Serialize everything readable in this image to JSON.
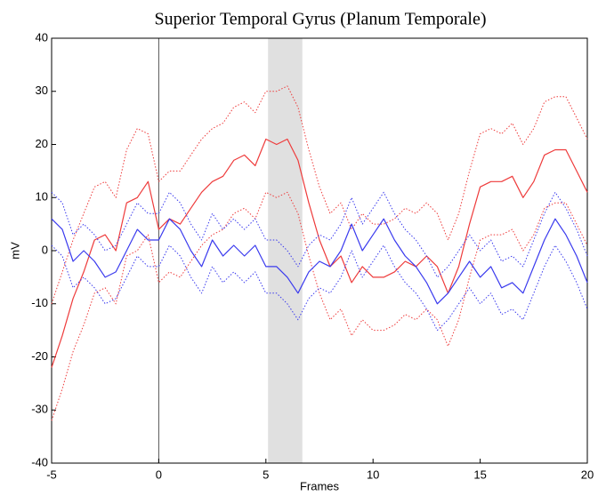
{
  "chart_data": {
    "type": "line",
    "title": "Superior Temporal Gyrus (Planum Temporale)",
    "x_label": "Frames",
    "y_label": "mV",
    "x": [
      -5,
      -4.5,
      -4,
      -3.5,
      -3,
      -2.5,
      -2,
      -1.5,
      -1,
      -0.5,
      0,
      0.5,
      1,
      1.5,
      2,
      2.5,
      3,
      3.5,
      4,
      4.5,
      5,
      5.5,
      6,
      6.5,
      7,
      7.5,
      8,
      8.5,
      9,
      9.5,
      10,
      10.5,
      11,
      11.5,
      12,
      12.5,
      13,
      13.5,
      14,
      14.5,
      15,
      15.5,
      16,
      16.5,
      17,
      17.5,
      18,
      18.5,
      19,
      19.5,
      20
    ],
    "series": [
      {
        "color": "#ee3b3b",
        "linestyle": "solid",
        "values": [
          -22,
          -16,
          -9,
          -4,
          2,
          3,
          0,
          9,
          10,
          13,
          4,
          6,
          5,
          8,
          11,
          13,
          14,
          17,
          18,
          16,
          21,
          20,
          21,
          17,
          9,
          2,
          -3,
          -1,
          -6,
          -3,
          -5,
          -5,
          -4,
          -2,
          -3,
          -1,
          -3,
          -8,
          -3,
          5,
          12,
          13,
          13,
          14,
          10,
          13,
          18,
          19,
          19,
          15,
          11
        ]
      },
      {
        "color": "#ee3b3b",
        "linestyle": "dotted",
        "values": [
          -10,
          -4,
          2,
          7,
          12,
          13,
          10,
          19,
          23,
          22,
          13,
          15,
          15,
          18,
          21,
          23,
          24,
          27,
          28,
          26,
          30,
          30,
          31,
          27,
          19,
          12,
          7,
          9,
          4,
          7,
          5,
          5,
          6,
          8,
          7,
          9,
          7,
          2,
          7,
          15,
          22,
          23,
          22,
          24,
          20,
          23,
          28,
          29,
          29,
          25,
          21
        ]
      },
      {
        "color": "#ee3b3b",
        "linestyle": "dotted",
        "values": [
          -32,
          -26,
          -19,
          -14,
          -8,
          -7,
          -10,
          -1,
          0,
          3,
          -6,
          -4,
          -5,
          -2,
          1,
          3,
          4,
          7,
          8,
          6,
          11,
          10,
          11,
          7,
          -1,
          -8,
          -13,
          -11,
          -16,
          -13,
          -15,
          -15,
          -14,
          -12,
          -13,
          -11,
          -13,
          -18,
          -13,
          -5,
          2,
          3,
          3,
          4,
          0,
          3,
          8,
          9,
          9,
          5,
          1
        ]
      },
      {
        "color": "#3a3aee",
        "linestyle": "solid",
        "values": [
          6,
          4,
          -2,
          0,
          -2,
          -5,
          -4,
          0,
          4,
          2,
          2,
          6,
          4,
          0,
          -3,
          2,
          -1,
          1,
          -1,
          1,
          -3,
          -3,
          -5,
          -8,
          -4,
          -2,
          -3,
          0,
          5,
          0,
          3,
          6,
          2,
          -1,
          -3,
          -6,
          -10,
          -8,
          -5,
          -2,
          -5,
          -3,
          -7,
          -6,
          -8,
          -3,
          2,
          6,
          3,
          -1,
          -6
        ]
      },
      {
        "color": "#3a3aee",
        "linestyle": "dotted",
        "values": [
          11,
          9,
          3,
          5,
          3,
          0,
          1,
          5,
          9,
          7,
          7,
          11,
          9,
          5,
          2,
          7,
          4,
          6,
          4,
          6,
          2,
          2,
          0,
          -3,
          1,
          3,
          2,
          5,
          10,
          5,
          8,
          11,
          7,
          4,
          2,
          -1,
          -5,
          -3,
          0,
          3,
          0,
          2,
          -2,
          -1,
          -3,
          2,
          7,
          11,
          8,
          4,
          -1
        ]
      },
      {
        "color": "#3a3aee",
        "linestyle": "dotted",
        "values": [
          1,
          -1,
          -7,
          -5,
          -7,
          -10,
          -9,
          -5,
          -1,
          -3,
          -3,
          1,
          -1,
          -5,
          -8,
          -3,
          -6,
          -4,
          -6,
          -4,
          -8,
          -8,
          -10,
          -13,
          -9,
          -7,
          -8,
          -5,
          0,
          -5,
          -2,
          1,
          -3,
          -6,
          -8,
          -11,
          -15,
          -13,
          -10,
          -7,
          -10,
          -8,
          -12,
          -11,
          -13,
          -8,
          -3,
          1,
          -2,
          -6,
          -11
        ]
      }
    ],
    "vline": 0,
    "span": [
      5.1,
      6.7
    ],
    "xlim": [
      -5,
      20
    ],
    "ylim": [
      -40,
      40
    ],
    "xticks": [
      -5,
      0,
      5,
      10,
      15,
      20
    ],
    "yticks": [
      -40,
      -30,
      -20,
      -10,
      0,
      10,
      20,
      30,
      40
    ]
  }
}
